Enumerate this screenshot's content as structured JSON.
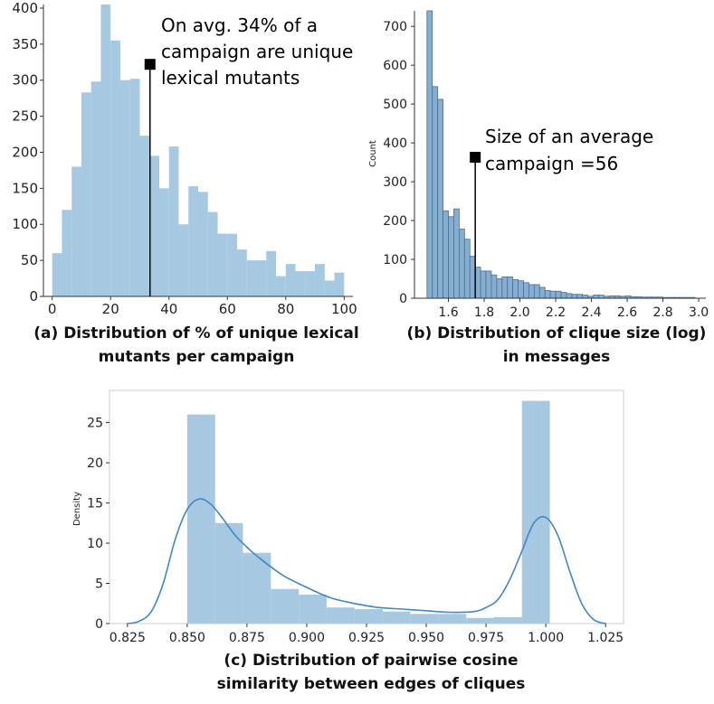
{
  "colors": {
    "bar": "#a6c8e0",
    "bar_b": "#86aed0",
    "bar_b_edge": "#4a6f94",
    "kde": "#3f88c5",
    "axis": "#333333"
  },
  "chart_data": [
    {
      "id": "a",
      "type": "bar",
      "title": "(a) Distribution of % of unique lexical mutants per campaign",
      "caption_lines": [
        "(a) Distribution of % of unique lexical",
        "mutants per campaign"
      ],
      "xlabel": "",
      "ylabel": "",
      "bin_edges": [
        0,
        3.33,
        6.67,
        10,
        13.33,
        16.67,
        20,
        23.33,
        26.67,
        30,
        33.33,
        36.67,
        40,
        43.33,
        46.67,
        50,
        53.33,
        56.67,
        60,
        63.33,
        66.67,
        70,
        73.33,
        76.67,
        80,
        83.33,
        86.67,
        90,
        93.33,
        96.67,
        100
      ],
      "values": [
        60,
        120,
        180,
        283,
        298,
        405,
        355,
        300,
        302,
        223,
        195,
        150,
        208,
        100,
        153,
        145,
        117,
        87,
        87,
        65,
        50,
        50,
        63,
        28,
        45,
        35,
        35,
        45,
        22,
        33
      ],
      "xlim": [
        -3,
        103
      ],
      "ylim": [
        0,
        405
      ],
      "xticks": [
        "0",
        "20",
        "40",
        "60",
        "80",
        "100"
      ],
      "yticks": [
        "0",
        "50",
        "100",
        "150",
        "200",
        "250",
        "300",
        "350",
        "400"
      ],
      "marker": {
        "x": 33.5,
        "y": 322
      },
      "annotation": [
        "On avg. 34% of a",
        "campaign are unique",
        "lexical mutants"
      ]
    },
    {
      "id": "b",
      "type": "bar",
      "title": "(b) Distribution of clique size (log) in messages",
      "caption_lines": [
        "(b) Distribution of clique size (log)",
        "in messages"
      ],
      "xlabel": "",
      "ylabel": "Count",
      "bin_edges": [
        1.48,
        1.51,
        1.54,
        1.57,
        1.6,
        1.63,
        1.66,
        1.69,
        1.72,
        1.75,
        1.78,
        1.81,
        1.84,
        1.87,
        1.9,
        1.93,
        1.96,
        1.99,
        2.02,
        2.05,
        2.08,
        2.11,
        2.14,
        2.17,
        2.2,
        2.23,
        2.26,
        2.29,
        2.32,
        2.35,
        2.38,
        2.41,
        2.44,
        2.47,
        2.5,
        2.53,
        2.56,
        2.59,
        2.62,
        2.65,
        2.68,
        2.71,
        2.74,
        2.77,
        2.8,
        2.83,
        2.86,
        2.89,
        2.92,
        2.95,
        2.98
      ],
      "values": [
        740,
        545,
        512,
        225,
        210,
        230,
        178,
        152,
        108,
        80,
        70,
        70,
        60,
        50,
        55,
        55,
        48,
        45,
        40,
        35,
        35,
        28,
        20,
        18,
        18,
        15,
        12,
        10,
        10,
        8,
        5,
        8,
        8,
        5,
        6,
        6,
        5,
        6,
        4,
        4,
        3,
        3,
        3,
        3,
        2,
        2,
        2,
        2,
        2,
        2
      ],
      "xlim": [
        1.41,
        3.04
      ],
      "ylim": [
        0,
        740
      ],
      "xticks": [
        "1.6",
        "1.8",
        "2.0",
        "2.2",
        "2.4",
        "2.6",
        "2.8",
        "3.0"
      ],
      "yticks": [
        "0",
        "100",
        "200",
        "300",
        "400",
        "500",
        "600",
        "700"
      ],
      "marker": {
        "x": 1.75,
        "y": 363
      },
      "annotation": [
        "Size of an average",
        "campaign =56"
      ]
    },
    {
      "id": "c",
      "type": "bar",
      "title": "(c) Distribution of pairwise cosine similarity between edges of cliques",
      "caption_lines": [
        "(c) Distribution of pairwise cosine",
        "similarity between edges of cliques"
      ],
      "xlabel": "",
      "ylabel": "Density",
      "bin_edges": [
        0.85,
        0.8617,
        0.8733,
        0.885,
        0.8967,
        0.9083,
        0.92,
        0.9317,
        0.9433,
        0.955,
        0.9667,
        0.9783,
        0.99,
        1.0017
      ],
      "values": [
        26.0,
        12.5,
        8.8,
        4.3,
        3.6,
        2.0,
        1.8,
        1.5,
        1.2,
        1.2,
        0.7,
        0.8,
        27.7
      ],
      "kde": {
        "x": [
          0.825,
          0.83,
          0.835,
          0.84,
          0.845,
          0.85,
          0.855,
          0.86,
          0.865,
          0.87,
          0.875,
          0.88,
          0.89,
          0.9,
          0.91,
          0.92,
          0.93,
          0.94,
          0.95,
          0.96,
          0.97,
          0.975,
          0.98,
          0.985,
          0.99,
          0.995,
          1.0,
          1.005,
          1.01,
          1.015,
          1.02,
          1.025
        ],
        "y": [
          0,
          0.3,
          1.5,
          5,
          10.5,
          14.2,
          15.5,
          14.8,
          13,
          11,
          9.5,
          8.2,
          6,
          4.5,
          3.2,
          2.5,
          2.0,
          1.8,
          1.6,
          1.4,
          1.5,
          2.0,
          3.0,
          5.5,
          9.0,
          12.5,
          13.2,
          11.0,
          6.5,
          2.5,
          0.5,
          0
        ]
      },
      "xlim": [
        0.8175,
        1.0325
      ],
      "ylim": [
        0,
        29
      ],
      "xticks": [
        "0.825",
        "0.850",
        "0.875",
        "0.900",
        "0.925",
        "0.950",
        "0.975",
        "1.000",
        "1.025"
      ],
      "yticks": [
        "0",
        "5",
        "10",
        "15",
        "20",
        "25"
      ]
    }
  ]
}
